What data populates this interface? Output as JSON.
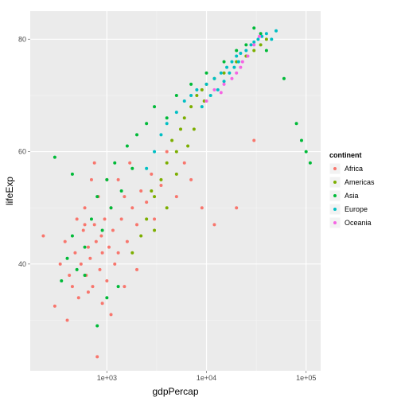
{
  "chart_data": {
    "type": "scatter",
    "xlabel": "gdpPercap",
    "ylabel": "lifeExp",
    "x_scale": "log10",
    "xlim": [
      170,
      140000
    ],
    "ylim": [
      21,
      85
    ],
    "x_ticks": [
      {
        "value": 1000,
        "label": "1e+03"
      },
      {
        "value": 10000,
        "label": "1e+04"
      },
      {
        "value": 100000,
        "label": "1e+05"
      }
    ],
    "y_ticks": [
      {
        "value": 40,
        "label": "40"
      },
      {
        "value": 60,
        "label": "60"
      },
      {
        "value": 80,
        "label": "80"
      }
    ],
    "grid": true,
    "legend": {
      "title": "continent",
      "placement": "right"
    },
    "series": [
      {
        "name": "Africa",
        "color": "#F8766D",
        "points": [
          [
            230,
            45
          ],
          [
            300,
            32.5
          ],
          [
            340,
            40
          ],
          [
            380,
            44
          ],
          [
            420,
            38
          ],
          [
            450,
            36
          ],
          [
            480,
            42
          ],
          [
            500,
            48
          ],
          [
            520,
            34
          ],
          [
            550,
            40
          ],
          [
            580,
            46
          ],
          [
            600,
            50
          ],
          [
            620,
            38
          ],
          [
            650,
            43
          ],
          [
            680,
            41
          ],
          [
            700,
            55
          ],
          [
            720,
            36
          ],
          [
            750,
            47
          ],
          [
            780,
            44
          ],
          [
            800,
            23.5
          ],
          [
            820,
            52
          ],
          [
            850,
            39
          ],
          [
            880,
            45
          ],
          [
            900,
            42
          ],
          [
            950,
            48
          ],
          [
            1000,
            37
          ],
          [
            1050,
            43
          ],
          [
            1100,
            50
          ],
          [
            1150,
            46
          ],
          [
            1200,
            40
          ],
          [
            1300,
            55
          ],
          [
            1400,
            48
          ],
          [
            1500,
            52
          ],
          [
            1600,
            44
          ],
          [
            1700,
            58
          ],
          [
            1800,
            50
          ],
          [
            2000,
            47
          ],
          [
            2200,
            53
          ],
          [
            2500,
            51
          ],
          [
            2800,
            56
          ],
          [
            3000,
            48
          ],
          [
            3500,
            54
          ],
          [
            4000,
            60
          ],
          [
            5000,
            52
          ],
          [
            6000,
            58
          ],
          [
            7000,
            55
          ],
          [
            9000,
            50
          ],
          [
            12000,
            47
          ],
          [
            20000,
            50
          ],
          [
            30000,
            62
          ],
          [
            400,
            30
          ],
          [
            650,
            35
          ],
          [
            900,
            33
          ],
          [
            1100,
            31
          ],
          [
            1500,
            36
          ],
          [
            2000,
            39
          ],
          [
            600,
            47
          ],
          [
            750,
            58
          ],
          [
            1000,
            55
          ],
          [
            1300,
            42
          ]
        ]
      },
      {
        "name": "Americas",
        "color": "#7CAE00",
        "points": [
          [
            1800,
            42
          ],
          [
            2200,
            45
          ],
          [
            2500,
            48
          ],
          [
            3000,
            52
          ],
          [
            3500,
            55
          ],
          [
            4000,
            58
          ],
          [
            4500,
            62
          ],
          [
            5000,
            60
          ],
          [
            5500,
            64
          ],
          [
            6000,
            66
          ],
          [
            7000,
            68
          ],
          [
            8000,
            70
          ],
          [
            9000,
            71
          ],
          [
            10000,
            72
          ],
          [
            12000,
            73
          ],
          [
            15000,
            74
          ],
          [
            20000,
            76
          ],
          [
            25000,
            77
          ],
          [
            30000,
            78
          ],
          [
            35000,
            79
          ],
          [
            40000,
            80
          ],
          [
            3000,
            46
          ],
          [
            4000,
            50
          ],
          [
            2800,
            53
          ],
          [
            6500,
            61
          ],
          [
            5000,
            56
          ],
          [
            7500,
            64
          ],
          [
            9500,
            69
          ]
        ]
      },
      {
        "name": "Asia",
        "color": "#00BA38",
        "points": [
          [
            350,
            37
          ],
          [
            400,
            41
          ],
          [
            450,
            45
          ],
          [
            500,
            39
          ],
          [
            600,
            43
          ],
          [
            700,
            48
          ],
          [
            800,
            52
          ],
          [
            900,
            46
          ],
          [
            1000,
            55
          ],
          [
            1100,
            50
          ],
          [
            1200,
            58
          ],
          [
            1400,
            53
          ],
          [
            1600,
            61
          ],
          [
            1800,
            57
          ],
          [
            2000,
            63
          ],
          [
            2500,
            65
          ],
          [
            3000,
            68
          ],
          [
            4000,
            66
          ],
          [
            5000,
            70
          ],
          [
            7000,
            72
          ],
          [
            10000,
            74
          ],
          [
            15000,
            76
          ],
          [
            20000,
            78
          ],
          [
            25000,
            79
          ],
          [
            30000,
            82
          ],
          [
            35000,
            81
          ],
          [
            40000,
            78
          ],
          [
            60000,
            73
          ],
          [
            80000,
            65
          ],
          [
            100000,
            60
          ],
          [
            110000,
            58
          ],
          [
            90000,
            62
          ],
          [
            300,
            59
          ],
          [
            450,
            56
          ],
          [
            600,
            38
          ],
          [
            800,
            29
          ],
          [
            1000,
            34
          ],
          [
            1300,
            36
          ]
        ]
      },
      {
        "name": "Europe",
        "color": "#00BFC4",
        "points": [
          [
            2500,
            57
          ],
          [
            3000,
            60
          ],
          [
            3500,
            63
          ],
          [
            4000,
            65
          ],
          [
            5000,
            67
          ],
          [
            6000,
            69
          ],
          [
            7000,
            70
          ],
          [
            8000,
            71
          ],
          [
            10000,
            72
          ],
          [
            12000,
            73
          ],
          [
            14000,
            74
          ],
          [
            16000,
            75
          ],
          [
            18000,
            76
          ],
          [
            20000,
            77
          ],
          [
            22000,
            77.5
          ],
          [
            25000,
            78
          ],
          [
            28000,
            79
          ],
          [
            30000,
            79.5
          ],
          [
            33000,
            80
          ],
          [
            36000,
            80.5
          ],
          [
            40000,
            81
          ],
          [
            45000,
            80
          ],
          [
            50000,
            81.5
          ],
          [
            9000,
            68
          ],
          [
            11000,
            70
          ],
          [
            13000,
            71
          ],
          [
            15000,
            72.5
          ],
          [
            17000,
            74
          ],
          [
            19000,
            75
          ],
          [
            21000,
            76
          ]
        ]
      },
      {
        "name": "Oceania",
        "color": "#F564E3",
        "points": [
          [
            10000,
            69
          ],
          [
            12000,
            71
          ],
          [
            15000,
            72
          ],
          [
            18000,
            73
          ],
          [
            20000,
            74
          ],
          [
            23000,
            76
          ],
          [
            26000,
            77
          ],
          [
            30000,
            79
          ],
          [
            34000,
            80.5
          ],
          [
            14000,
            70.5
          ],
          [
            22000,
            75
          ]
        ]
      }
    ]
  }
}
